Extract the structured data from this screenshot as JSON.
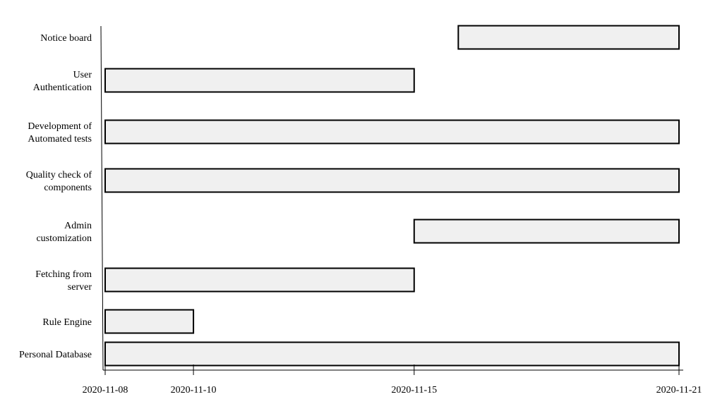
{
  "chart_data": {
    "type": "gantt",
    "title": "",
    "xlabel": "",
    "ylabel": "",
    "grid": false,
    "x_ticks": [
      "2020-11-08",
      "2020-11-10",
      "2020-11-15",
      "2020-11-21"
    ],
    "tasks": [
      {
        "label": [
          "Notice board"
        ],
        "start": "2020-11-16",
        "end": "2020-11-21"
      },
      {
        "label": [
          "User",
          "Authentication"
        ],
        "start": "2020-11-08",
        "end": "2020-11-15"
      },
      {
        "label": [
          "Development of",
          "Automated tests"
        ],
        "start": "2020-11-08",
        "end": "2020-11-21"
      },
      {
        "label": [
          "Quality check of",
          "components"
        ],
        "start": "2020-11-08",
        "end": "2020-11-21"
      },
      {
        "label": [
          "Admin",
          "customization"
        ],
        "start": "2020-11-15",
        "end": "2020-11-21"
      },
      {
        "label": [
          "Fetching from",
          "server"
        ],
        "start": "2020-11-08",
        "end": "2020-11-15"
      },
      {
        "label": [
          "Rule Engine"
        ],
        "start": "2020-11-08",
        "end": "2020-11-10"
      },
      {
        "label": [
          "Personal Database"
        ],
        "start": "2020-11-08",
        "end": "2020-11-21"
      }
    ]
  }
}
